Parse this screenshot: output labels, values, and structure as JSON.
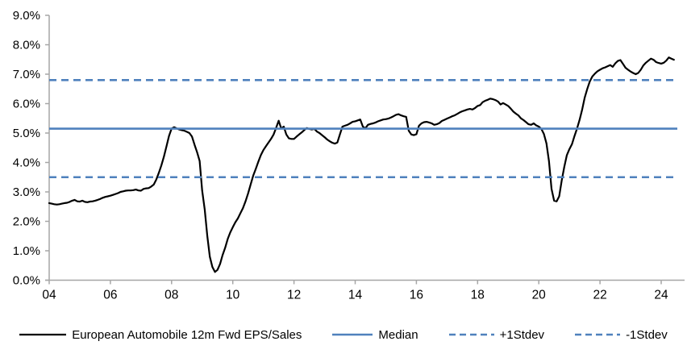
{
  "figure": {
    "legend": [
      {
        "label": "European Automobile 12m Fwd EPS/Sales"
      },
      {
        "label": "Median"
      },
      {
        "label": "+1Stdev"
      },
      {
        "label": "-1Stdev"
      }
    ]
  },
  "colors": {
    "series_line": "#000000",
    "stat_lines": "#4f81bd",
    "axis": "#a6a6a6",
    "text": "#000000"
  },
  "chart_data": {
    "type": "line",
    "title": "",
    "xlabel": "",
    "ylabel": "",
    "grid": false,
    "legend_position": "bottom",
    "x_axis": {
      "range": [
        2004,
        2024.75
      ],
      "ticks": [
        2004,
        2006,
        2008,
        2010,
        2012,
        2014,
        2016,
        2018,
        2020,
        2022,
        2024
      ],
      "tick_labels": [
        "04",
        "06",
        "08",
        "10",
        "12",
        "14",
        "16",
        "18",
        "20",
        "22",
        "24"
      ]
    },
    "y_axis": {
      "range": [
        0,
        9
      ],
      "tick_step": 1,
      "tick_labels": [
        "0.0%",
        "1.0%",
        "2.0%",
        "3.0%",
        "4.0%",
        "5.0%",
        "6.0%",
        "7.0%",
        "8.0%",
        "9.0%"
      ]
    },
    "series": [
      {
        "name": "European Automobile 12m Fwd EPS/Sales",
        "color": "#000000",
        "dash": null,
        "width": 2.2,
        "x_start": 2004.0,
        "x_step": 0.0833333,
        "values": [
          2.62,
          2.6,
          2.58,
          2.57,
          2.58,
          2.6,
          2.62,
          2.63,
          2.66,
          2.7,
          2.73,
          2.68,
          2.67,
          2.7,
          2.66,
          2.65,
          2.67,
          2.68,
          2.7,
          2.73,
          2.76,
          2.8,
          2.83,
          2.85,
          2.87,
          2.9,
          2.93,
          2.96,
          3.0,
          3.02,
          3.04,
          3.05,
          3.05,
          3.06,
          3.08,
          3.05,
          3.04,
          3.1,
          3.12,
          3.13,
          3.18,
          3.25,
          3.42,
          3.65,
          3.9,
          4.2,
          4.55,
          4.9,
          5.15,
          5.2,
          5.16,
          5.12,
          5.1,
          5.08,
          5.04,
          5.0,
          4.88,
          4.6,
          4.35,
          4.05,
          3.05,
          2.4,
          1.5,
          0.8,
          0.45,
          0.28,
          0.35,
          0.55,
          0.85,
          1.1,
          1.4,
          1.62,
          1.8,
          1.97,
          2.1,
          2.28,
          2.45,
          2.68,
          2.95,
          3.25,
          3.55,
          3.78,
          4.02,
          4.25,
          4.42,
          4.55,
          4.68,
          4.8,
          4.95,
          5.18,
          5.42,
          5.15,
          5.22,
          4.95,
          4.82,
          4.8,
          4.8,
          4.88,
          4.95,
          5.02,
          5.1,
          5.17,
          5.14,
          5.12,
          5.14,
          5.05,
          5.0,
          4.93,
          4.86,
          4.78,
          4.72,
          4.67,
          4.64,
          4.68,
          4.95,
          5.22,
          5.25,
          5.28,
          5.33,
          5.38,
          5.4,
          5.43,
          5.46,
          5.22,
          5.16,
          5.28,
          5.31,
          5.33,
          5.36,
          5.4,
          5.43,
          5.46,
          5.47,
          5.49,
          5.53,
          5.57,
          5.62,
          5.64,
          5.6,
          5.57,
          5.55,
          5.08,
          4.95,
          4.93,
          4.96,
          5.25,
          5.33,
          5.37,
          5.38,
          5.36,
          5.33,
          5.28,
          5.3,
          5.34,
          5.41,
          5.45,
          5.49,
          5.53,
          5.57,
          5.6,
          5.65,
          5.7,
          5.74,
          5.77,
          5.8,
          5.82,
          5.8,
          5.85,
          5.92,
          5.95,
          6.05,
          6.1,
          6.13,
          6.17,
          6.15,
          6.12,
          6.07,
          5.97,
          6.02,
          5.97,
          5.92,
          5.83,
          5.73,
          5.66,
          5.6,
          5.5,
          5.44,
          5.37,
          5.3,
          5.28,
          5.33,
          5.26,
          5.22,
          5.14,
          4.97,
          4.65,
          4.05,
          3.1,
          2.7,
          2.68,
          2.85,
          3.4,
          3.85,
          4.25,
          4.45,
          4.62,
          4.9,
          5.15,
          5.45,
          5.8,
          6.2,
          6.5,
          6.75,
          6.92,
          7.02,
          7.1,
          7.15,
          7.2,
          7.23,
          7.27,
          7.31,
          7.25,
          7.37,
          7.45,
          7.48,
          7.35,
          7.22,
          7.15,
          7.09,
          7.04,
          7.0,
          7.04,
          7.15,
          7.3,
          7.39,
          7.46,
          7.53,
          7.49,
          7.41,
          7.38,
          7.36,
          7.39,
          7.46,
          7.57,
          7.53,
          7.49
        ]
      },
      {
        "name": "Median",
        "color": "#4f81bd",
        "dash": null,
        "width": 2.6,
        "constant": 5.15
      },
      {
        "name": "+1Stdev",
        "color": "#4f81bd",
        "dash": [
          9,
          6
        ],
        "width": 2.6,
        "constant": 6.8
      },
      {
        "name": "-1Stdev",
        "color": "#4f81bd",
        "dash": [
          9,
          6
        ],
        "width": 2.6,
        "constant": 3.5
      }
    ]
  }
}
